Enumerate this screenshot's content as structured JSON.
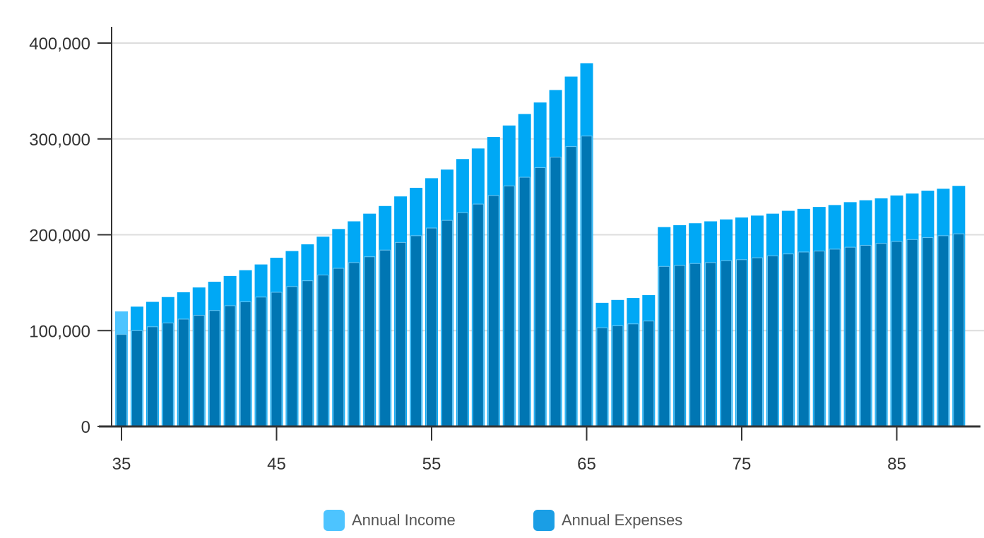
{
  "chart_data": {
    "type": "bar",
    "title": "",
    "xlabel": "",
    "ylabel": "",
    "x": [
      35,
      36,
      37,
      38,
      39,
      40,
      41,
      42,
      43,
      44,
      45,
      46,
      47,
      48,
      49,
      50,
      51,
      52,
      53,
      54,
      55,
      56,
      57,
      58,
      59,
      60,
      61,
      62,
      63,
      64,
      65,
      66,
      67,
      68,
      69,
      70,
      71,
      72,
      73,
      74,
      75,
      76,
      77,
      78,
      79,
      80,
      81,
      82,
      83,
      84,
      85,
      86,
      87,
      88,
      89
    ],
    "x_ticks": [
      35,
      45,
      55,
      65,
      75,
      85
    ],
    "x_tick_labels": [
      "35",
      "45",
      "55",
      "65",
      "75",
      "85"
    ],
    "ylim": [
      0,
      400000
    ],
    "y_ticks": [
      0,
      100000,
      200000,
      300000,
      400000
    ],
    "y_tick_labels": [
      "0",
      "100,000",
      "200,000",
      "300,000",
      "400,000"
    ],
    "grid": true,
    "legend_position": "bottom",
    "series": [
      {
        "name": "Annual Income",
        "color": "#00a8f5",
        "first_color": "#4dc4ff",
        "values": [
          120000,
          125000,
          130000,
          135000,
          140000,
          145000,
          151000,
          157000,
          163000,
          169000,
          176000,
          183000,
          190000,
          198000,
          206000,
          214000,
          222000,
          230000,
          240000,
          249000,
          259000,
          268000,
          279000,
          290000,
          302000,
          314000,
          326000,
          338000,
          351000,
          365000,
          379000,
          129000,
          132000,
          134000,
          137000,
          208000,
          210000,
          212000,
          214000,
          216000,
          218000,
          220000,
          222000,
          225000,
          227000,
          229000,
          231000,
          234000,
          236000,
          238000,
          241000,
          243000,
          246000,
          248000,
          251000
        ]
      },
      {
        "name": "Annual Expenses",
        "color": "#0076b3",
        "values": [
          96000,
          100000,
          104000,
          108000,
          112000,
          116000,
          121000,
          126000,
          130000,
          135000,
          140000,
          146000,
          152000,
          158000,
          165000,
          171000,
          177000,
          184000,
          192000,
          199000,
          207000,
          215000,
          223000,
          232000,
          241000,
          251000,
          260000,
          270000,
          281000,
          292000,
          303000,
          103000,
          105000,
          107000,
          110000,
          167000,
          168000,
          170000,
          171000,
          173000,
          174000,
          176000,
          178000,
          180000,
          182000,
          183000,
          185000,
          187000,
          189000,
          191000,
          193000,
          195000,
          197000,
          199000,
          201000
        ]
      }
    ]
  },
  "legend": {
    "income_label": "Annual Income",
    "expenses_label": "Annual Expenses",
    "income_color": "#4dc4ff",
    "expenses_color": "#1a9ee5"
  },
  "colors": {
    "grid": "#dddddd",
    "axis": "#333333"
  }
}
